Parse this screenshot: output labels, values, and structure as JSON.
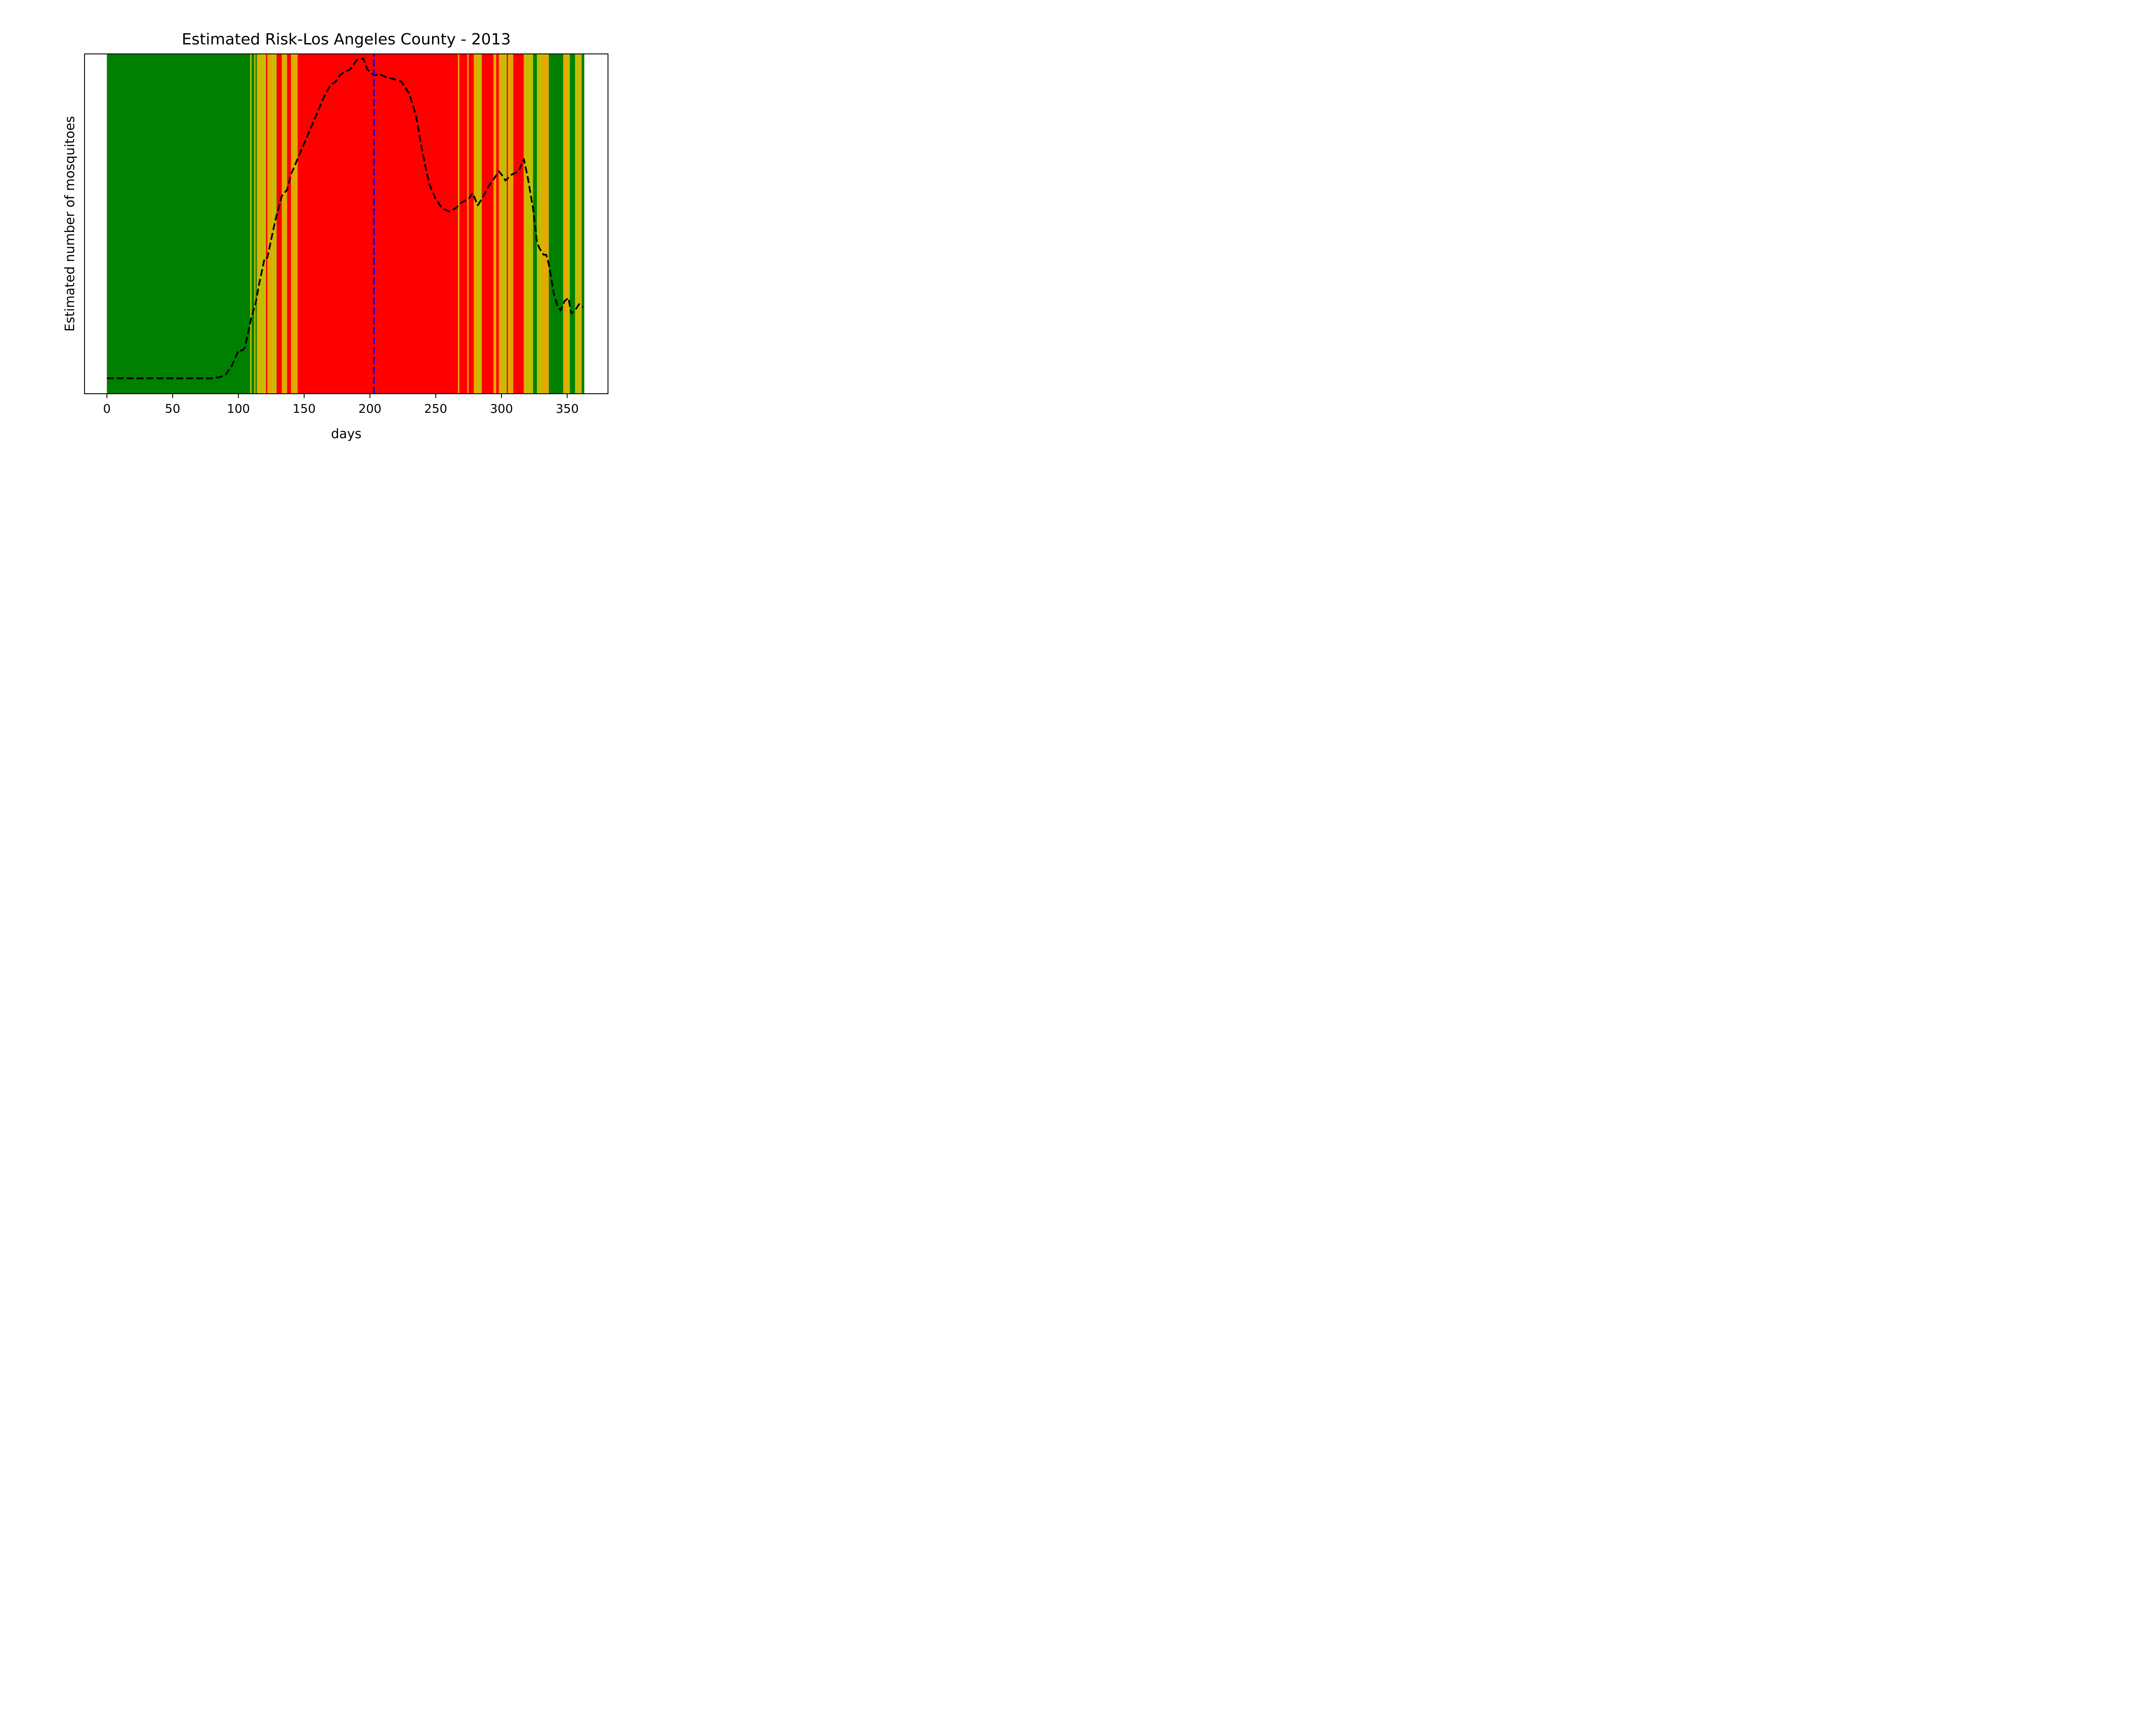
{
  "chart_data": {
    "type": "line",
    "title": "Estimated Risk-Los Angeles County - 2013",
    "xlabel": "days",
    "ylabel": "Estimated number of mosquitoes",
    "xlim": [
      -17,
      381
    ],
    "ylim": [
      -0.05,
      1.05
    ],
    "xticks": [
      0,
      50,
      100,
      150,
      200,
      250,
      300,
      350
    ],
    "y_tick_labels_shown": false,
    "grid": false,
    "risk_colors": {
      "green": "#008000",
      "yellow": "#bfbf00",
      "orange": "#e5a800",
      "red": "#ff0000"
    },
    "risk_bands": [
      {
        "start": 0,
        "end": 109,
        "level": "green"
      },
      {
        "start": 109,
        "end": 110,
        "level": "yellow"
      },
      {
        "start": 110,
        "end": 112,
        "level": "green"
      },
      {
        "start": 112,
        "end": 113,
        "level": "yellow"
      },
      {
        "start": 113,
        "end": 114,
        "level": "green"
      },
      {
        "start": 114,
        "end": 116,
        "level": "orange"
      },
      {
        "start": 116,
        "end": 120,
        "level": "yellow"
      },
      {
        "start": 120,
        "end": 121,
        "level": "orange"
      },
      {
        "start": 121,
        "end": 122,
        "level": "red"
      },
      {
        "start": 122,
        "end": 126,
        "level": "orange"
      },
      {
        "start": 126,
        "end": 129,
        "level": "yellow"
      },
      {
        "start": 129,
        "end": 133,
        "level": "red"
      },
      {
        "start": 133,
        "end": 137,
        "level": "orange"
      },
      {
        "start": 137,
        "end": 140,
        "level": "red"
      },
      {
        "start": 140,
        "end": 145,
        "level": "orange"
      },
      {
        "start": 145,
        "end": 267,
        "level": "red"
      },
      {
        "start": 267,
        "end": 268,
        "level": "orange"
      },
      {
        "start": 268,
        "end": 274,
        "level": "red"
      },
      {
        "start": 274,
        "end": 275,
        "level": "orange"
      },
      {
        "start": 275,
        "end": 279,
        "level": "red"
      },
      {
        "start": 279,
        "end": 282,
        "level": "orange"
      },
      {
        "start": 282,
        "end": 285,
        "level": "yellow"
      },
      {
        "start": 285,
        "end": 294,
        "level": "red"
      },
      {
        "start": 294,
        "end": 296,
        "level": "orange"
      },
      {
        "start": 296,
        "end": 298,
        "level": "red"
      },
      {
        "start": 298,
        "end": 300,
        "level": "orange"
      },
      {
        "start": 300,
        "end": 304,
        "level": "yellow"
      },
      {
        "start": 304,
        "end": 305,
        "level": "red"
      },
      {
        "start": 305,
        "end": 309,
        "level": "orange"
      },
      {
        "start": 309,
        "end": 317,
        "level": "red"
      },
      {
        "start": 317,
        "end": 318,
        "level": "orange"
      },
      {
        "start": 318,
        "end": 324,
        "level": "yellow"
      },
      {
        "start": 324,
        "end": 327,
        "level": "green"
      },
      {
        "start": 327,
        "end": 331,
        "level": "yellow"
      },
      {
        "start": 331,
        "end": 336,
        "level": "orange"
      },
      {
        "start": 336,
        "end": 347,
        "level": "green"
      },
      {
        "start": 347,
        "end": 350,
        "level": "orange"
      },
      {
        "start": 350,
        "end": 352,
        "level": "yellow"
      },
      {
        "start": 352,
        "end": 356,
        "level": "green"
      },
      {
        "start": 356,
        "end": 360,
        "level": "yellow"
      },
      {
        "start": 360,
        "end": 361,
        "level": "orange"
      },
      {
        "start": 361,
        "end": 363,
        "level": "green"
      }
    ],
    "series": [
      {
        "style": "dashed",
        "color": "#000000",
        "x": [
          0,
          10,
          20,
          30,
          40,
          50,
          60,
          70,
          80,
          85,
          90,
          95,
          100,
          103,
          105,
          108,
          110,
          113,
          116,
          120,
          122,
          125,
          128,
          133,
          137,
          140,
          145,
          150,
          155,
          160,
          165,
          170,
          174,
          177,
          180,
          185,
          190,
          195,
          198,
          203,
          207,
          212,
          217,
          224,
          230,
          235,
          240,
          245,
          250,
          255,
          260,
          265,
          270,
          275,
          278,
          280,
          282,
          285,
          290,
          295,
          298,
          300,
          303,
          308,
          313,
          317,
          320,
          324,
          327,
          329,
          332,
          334,
          336,
          340,
          343,
          345,
          348,
          351,
          353,
          356,
          359,
          362
        ],
        "y": [
          0.0,
          0.0,
          0.0,
          0.0,
          0.0,
          0.0,
          0.0,
          0.0,
          0.0,
          0.003,
          0.01,
          0.04,
          0.09,
          0.09,
          0.1,
          0.16,
          0.2,
          0.24,
          0.31,
          0.39,
          0.39,
          0.45,
          0.51,
          0.59,
          0.61,
          0.66,
          0.71,
          0.76,
          0.81,
          0.86,
          0.91,
          0.95,
          0.96,
          0.98,
          0.99,
          1.0,
          1.03,
          1.035,
          1.0,
          0.98,
          0.985,
          0.975,
          0.97,
          0.96,
          0.92,
          0.85,
          0.73,
          0.63,
          0.58,
          0.55,
          0.54,
          0.55,
          0.57,
          0.58,
          0.6,
          0.58,
          0.56,
          0.58,
          0.62,
          0.65,
          0.67,
          0.66,
          0.64,
          0.66,
          0.67,
          0.71,
          0.65,
          0.55,
          0.44,
          0.42,
          0.4,
          0.4,
          0.37,
          0.27,
          0.23,
          0.22,
          0.25,
          0.26,
          0.21,
          0.22,
          0.24,
          0.23
        ]
      },
      {
        "style": "dashed-vertical",
        "color": "#0000ff",
        "x": [
          203,
          203
        ],
        "y": [
          -0.05,
          1.05
        ]
      }
    ]
  }
}
